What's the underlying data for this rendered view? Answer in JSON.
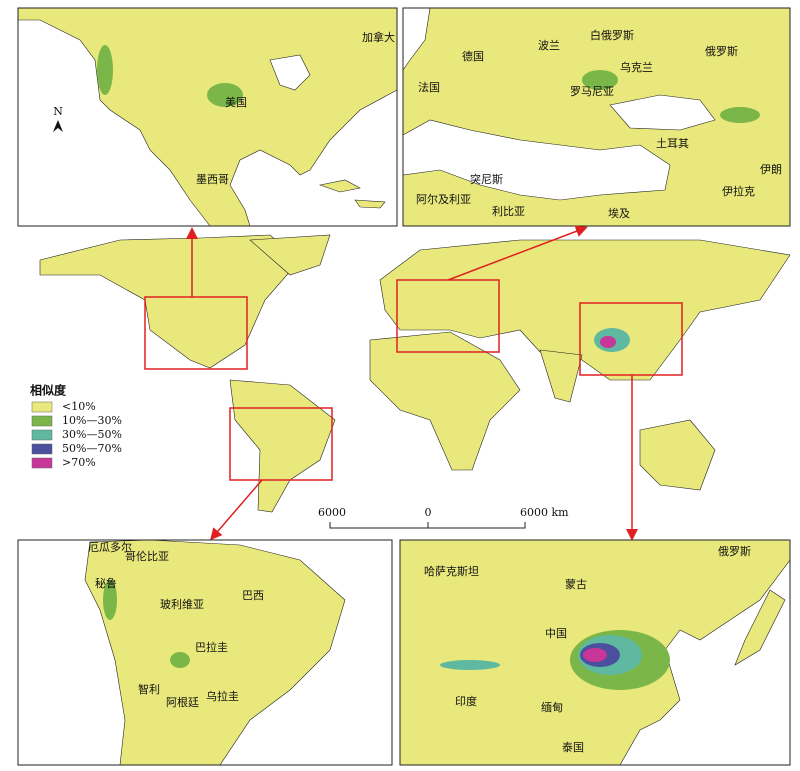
{
  "legend": {
    "title": "相似度",
    "items": [
      {
        "label": "<10%",
        "color": "#e8e87c"
      },
      {
        "label": "10%—30%",
        "color": "#7ab648"
      },
      {
        "label": "30%—50%",
        "color": "#5fb8a0"
      },
      {
        "label": "50%—70%",
        "color": "#4a4f9e"
      },
      {
        "label": ">70%",
        "color": "#c8369a"
      }
    ]
  },
  "scale_bar": {
    "labels": [
      "6000",
      "0",
      "6000 km"
    ]
  },
  "north_arrow": "N",
  "insets": {
    "north_america": [
      "加拿大",
      "美国",
      "墨西哥"
    ],
    "europe": [
      "白俄罗斯",
      "波兰",
      "德国",
      "俄罗斯",
      "乌克兰",
      "法国",
      "罗马尼亚",
      "土耳其",
      "伊朗",
      "伊拉克",
      "阿尔及利亚",
      "突尼斯",
      "利比亚",
      "埃及"
    ],
    "south_america": [
      "厄瓜多尔",
      "哥伦比亚",
      "秘鲁",
      "玻利维亚",
      "巴西",
      "巴拉圭",
      "智利",
      "阿根廷",
      "乌拉圭"
    ],
    "asia": [
      "哈萨克斯坦",
      "俄罗斯",
      "蒙古",
      "中国",
      "印度",
      "缅甸",
      "泰国"
    ]
  }
}
